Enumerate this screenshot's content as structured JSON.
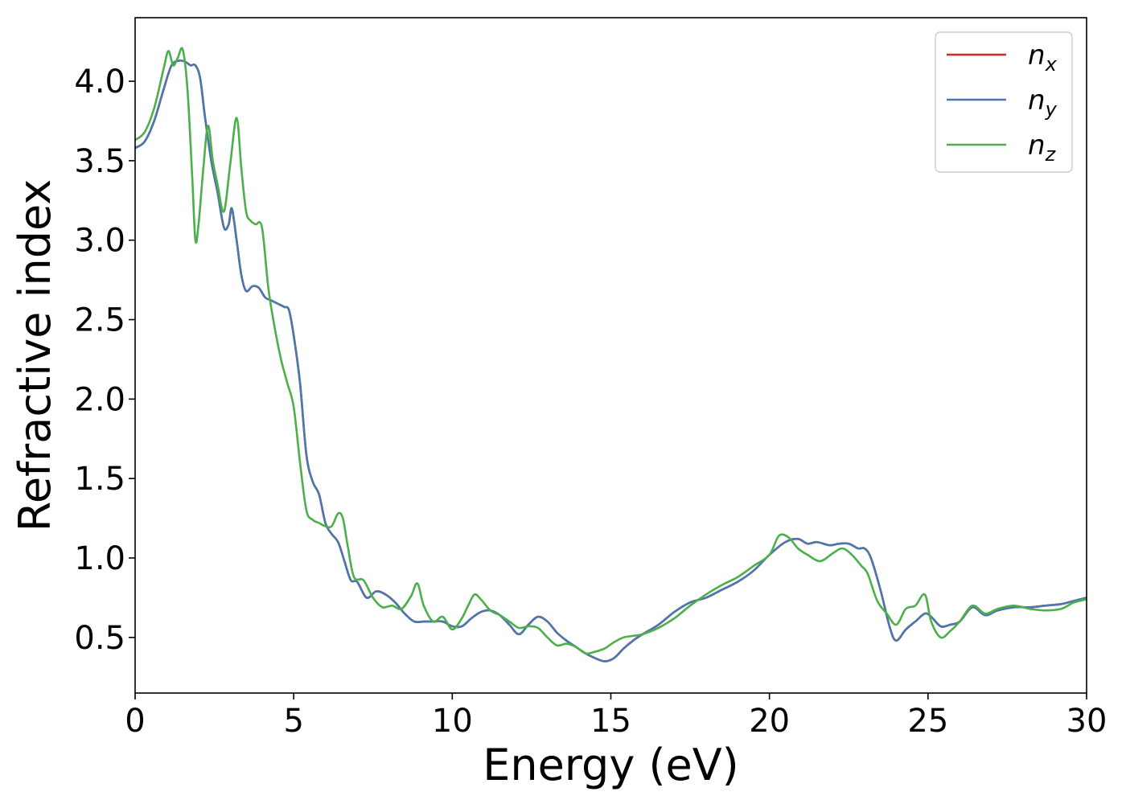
{
  "chart_data": {
    "type": "line",
    "title": "",
    "xlabel": "Energy (eV)",
    "ylabel": "Refractive index",
    "xlim": [
      0,
      30
    ],
    "ylim": [
      0.15,
      4.4
    ],
    "xticks": [
      0,
      5,
      10,
      15,
      20,
      25,
      30
    ],
    "xtick_labels": [
      "0",
      "5",
      "10",
      "15",
      "20",
      "25",
      "30"
    ],
    "yticks": [
      0.5,
      1.0,
      1.5,
      2.0,
      2.5,
      3.0,
      3.5,
      4.0
    ],
    "ytick_labels": [
      "0.5",
      "1.0",
      "1.5",
      "2.0",
      "2.5",
      "3.0",
      "3.5",
      "4.0"
    ],
    "grid": false,
    "legend_position": "top-right",
    "series": [
      {
        "name": "n",
        "subscript": "x",
        "color": "#d62728",
        "x": [
          0,
          0.3,
          0.6,
          0.9,
          1.15,
          1.4,
          1.6,
          1.75,
          1.9,
          2.05,
          2.2,
          2.4,
          2.6,
          2.8,
          2.95,
          3.05,
          3.2,
          3.35,
          3.5,
          3.7,
          3.9,
          4.1,
          4.3,
          4.5,
          4.7,
          4.85,
          5.0,
          5.2,
          5.4,
          5.6,
          5.8,
          6.0,
          6.2,
          6.4,
          6.6,
          6.8,
          7.0,
          7.3,
          7.6,
          7.9,
          8.2,
          8.5,
          8.8,
          9.1,
          9.4,
          9.7,
          10.0,
          10.3,
          10.6,
          10.9,
          11.2,
          11.5,
          11.8,
          12.1,
          12.4,
          12.7,
          13.0,
          13.3,
          13.6,
          13.9,
          14.2,
          14.5,
          14.8,
          15.1,
          15.4,
          15.7,
          16.0,
          16.5,
          17.0,
          17.5,
          18.0,
          18.5,
          19.0,
          19.5,
          20.0,
          20.5,
          20.9,
          21.2,
          21.5,
          21.9,
          22.2,
          22.5,
          22.8,
          23.0,
          23.2,
          23.5,
          23.8,
          24.0,
          24.3,
          24.6,
          24.9,
          25.1,
          25.4,
          25.7,
          26.0,
          26.4,
          26.8,
          27.2,
          27.7,
          28.2,
          28.7,
          29.2,
          29.6,
          30.0
        ],
        "y": [
          3.58,
          3.62,
          3.75,
          3.95,
          4.1,
          4.13,
          4.12,
          4.1,
          4.1,
          4.02,
          3.78,
          3.5,
          3.3,
          3.08,
          3.1,
          3.2,
          3.0,
          2.78,
          2.68,
          2.71,
          2.7,
          2.64,
          2.62,
          2.6,
          2.58,
          2.56,
          2.4,
          2.1,
          1.65,
          1.48,
          1.4,
          1.22,
          1.15,
          1.1,
          0.98,
          0.86,
          0.85,
          0.75,
          0.79,
          0.77,
          0.72,
          0.65,
          0.6,
          0.6,
          0.6,
          0.6,
          0.57,
          0.57,
          0.62,
          0.66,
          0.67,
          0.64,
          0.58,
          0.52,
          0.58,
          0.63,
          0.6,
          0.53,
          0.48,
          0.44,
          0.4,
          0.37,
          0.35,
          0.37,
          0.43,
          0.48,
          0.52,
          0.58,
          0.66,
          0.72,
          0.75,
          0.8,
          0.85,
          0.92,
          1.02,
          1.1,
          1.12,
          1.09,
          1.1,
          1.08,
          1.09,
          1.09,
          1.06,
          1.06,
          1.0,
          0.8,
          0.56,
          0.48,
          0.55,
          0.6,
          0.65,
          0.63,
          0.57,
          0.58,
          0.6,
          0.69,
          0.64,
          0.67,
          0.69,
          0.69,
          0.7,
          0.71,
          0.73,
          0.75
        ]
      },
      {
        "name": "n",
        "subscript": "y",
        "color": "#4a77ad",
        "x": [
          0,
          0.3,
          0.6,
          0.9,
          1.15,
          1.4,
          1.6,
          1.75,
          1.9,
          2.05,
          2.2,
          2.4,
          2.6,
          2.8,
          2.95,
          3.05,
          3.2,
          3.35,
          3.5,
          3.7,
          3.9,
          4.1,
          4.3,
          4.5,
          4.7,
          4.85,
          5.0,
          5.2,
          5.4,
          5.6,
          5.8,
          6.0,
          6.2,
          6.4,
          6.6,
          6.8,
          7.0,
          7.3,
          7.6,
          7.9,
          8.2,
          8.5,
          8.8,
          9.1,
          9.4,
          9.7,
          10.0,
          10.3,
          10.6,
          10.9,
          11.2,
          11.5,
          11.8,
          12.1,
          12.4,
          12.7,
          13.0,
          13.3,
          13.6,
          13.9,
          14.2,
          14.5,
          14.8,
          15.1,
          15.4,
          15.7,
          16.0,
          16.5,
          17.0,
          17.5,
          18.0,
          18.5,
          19.0,
          19.5,
          20.0,
          20.5,
          20.9,
          21.2,
          21.5,
          21.9,
          22.2,
          22.5,
          22.8,
          23.0,
          23.2,
          23.5,
          23.8,
          24.0,
          24.3,
          24.6,
          24.9,
          25.1,
          25.4,
          25.7,
          26.0,
          26.4,
          26.8,
          27.2,
          27.7,
          28.2,
          28.7,
          29.2,
          29.6,
          30.0
        ],
        "y": [
          3.58,
          3.62,
          3.75,
          3.95,
          4.1,
          4.13,
          4.12,
          4.1,
          4.1,
          4.02,
          3.78,
          3.5,
          3.3,
          3.08,
          3.1,
          3.2,
          3.0,
          2.78,
          2.68,
          2.71,
          2.7,
          2.64,
          2.62,
          2.6,
          2.58,
          2.56,
          2.4,
          2.1,
          1.65,
          1.48,
          1.4,
          1.22,
          1.15,
          1.1,
          0.98,
          0.86,
          0.85,
          0.75,
          0.79,
          0.77,
          0.72,
          0.65,
          0.6,
          0.6,
          0.6,
          0.6,
          0.57,
          0.57,
          0.62,
          0.66,
          0.67,
          0.64,
          0.58,
          0.52,
          0.58,
          0.63,
          0.6,
          0.53,
          0.48,
          0.44,
          0.4,
          0.37,
          0.35,
          0.37,
          0.43,
          0.48,
          0.52,
          0.58,
          0.66,
          0.72,
          0.75,
          0.8,
          0.85,
          0.92,
          1.02,
          1.1,
          1.12,
          1.09,
          1.1,
          1.08,
          1.09,
          1.09,
          1.06,
          1.06,
          1.0,
          0.8,
          0.56,
          0.48,
          0.55,
          0.6,
          0.65,
          0.63,
          0.57,
          0.58,
          0.6,
          0.69,
          0.64,
          0.67,
          0.69,
          0.69,
          0.7,
          0.71,
          0.73,
          0.75
        ]
      },
      {
        "name": "n",
        "subscript": "z",
        "color": "#4daf4a",
        "x": [
          0,
          0.3,
          0.6,
          0.9,
          1.05,
          1.2,
          1.35,
          1.5,
          1.65,
          1.8,
          1.9,
          2.0,
          2.15,
          2.3,
          2.45,
          2.6,
          2.8,
          3.0,
          3.2,
          3.35,
          3.5,
          3.65,
          3.8,
          4.0,
          4.2,
          4.4,
          4.6,
          4.8,
          5.0,
          5.2,
          5.4,
          5.6,
          5.8,
          6.0,
          6.2,
          6.4,
          6.55,
          6.7,
          6.9,
          7.2,
          7.5,
          7.8,
          8.1,
          8.4,
          8.7,
          8.9,
          9.1,
          9.4,
          9.7,
          10.0,
          10.3,
          10.5,
          10.7,
          10.9,
          11.2,
          11.5,
          11.8,
          12.1,
          12.4,
          12.7,
          13.0,
          13.3,
          13.6,
          13.9,
          14.2,
          14.5,
          14.8,
          15.1,
          15.4,
          15.7,
          16.0,
          16.5,
          17.0,
          17.5,
          18.0,
          18.5,
          19.0,
          19.5,
          20.0,
          20.3,
          20.6,
          20.9,
          21.2,
          21.6,
          22.0,
          22.3,
          22.6,
          22.9,
          23.1,
          23.4,
          23.7,
          24.0,
          24.3,
          24.6,
          24.9,
          25.1,
          25.4,
          25.7,
          26.0,
          26.4,
          26.8,
          27.2,
          27.7,
          28.2,
          28.7,
          29.2,
          29.6,
          30.0
        ],
        "y": [
          3.63,
          3.68,
          3.83,
          4.08,
          4.19,
          4.1,
          4.15,
          4.2,
          3.95,
          3.4,
          3.0,
          3.1,
          3.45,
          3.72,
          3.5,
          3.35,
          3.18,
          3.48,
          3.77,
          3.45,
          3.18,
          3.12,
          3.1,
          3.08,
          2.7,
          2.45,
          2.25,
          2.1,
          1.95,
          1.6,
          1.3,
          1.24,
          1.22,
          1.2,
          1.2,
          1.28,
          1.25,
          1.08,
          0.88,
          0.86,
          0.75,
          0.69,
          0.7,
          0.68,
          0.76,
          0.84,
          0.7,
          0.6,
          0.63,
          0.55,
          0.62,
          0.7,
          0.77,
          0.74,
          0.67,
          0.64,
          0.6,
          0.56,
          0.57,
          0.56,
          0.5,
          0.45,
          0.46,
          0.44,
          0.4,
          0.41,
          0.43,
          0.47,
          0.5,
          0.51,
          0.52,
          0.56,
          0.62,
          0.7,
          0.77,
          0.83,
          0.88,
          0.95,
          1.02,
          1.14,
          1.13,
          1.06,
          1.02,
          0.98,
          1.03,
          1.06,
          1.02,
          0.95,
          0.9,
          0.73,
          0.65,
          0.58,
          0.68,
          0.7,
          0.77,
          0.6,
          0.5,
          0.54,
          0.6,
          0.7,
          0.65,
          0.68,
          0.7,
          0.68,
          0.67,
          0.68,
          0.72,
          0.74
        ]
      }
    ]
  }
}
